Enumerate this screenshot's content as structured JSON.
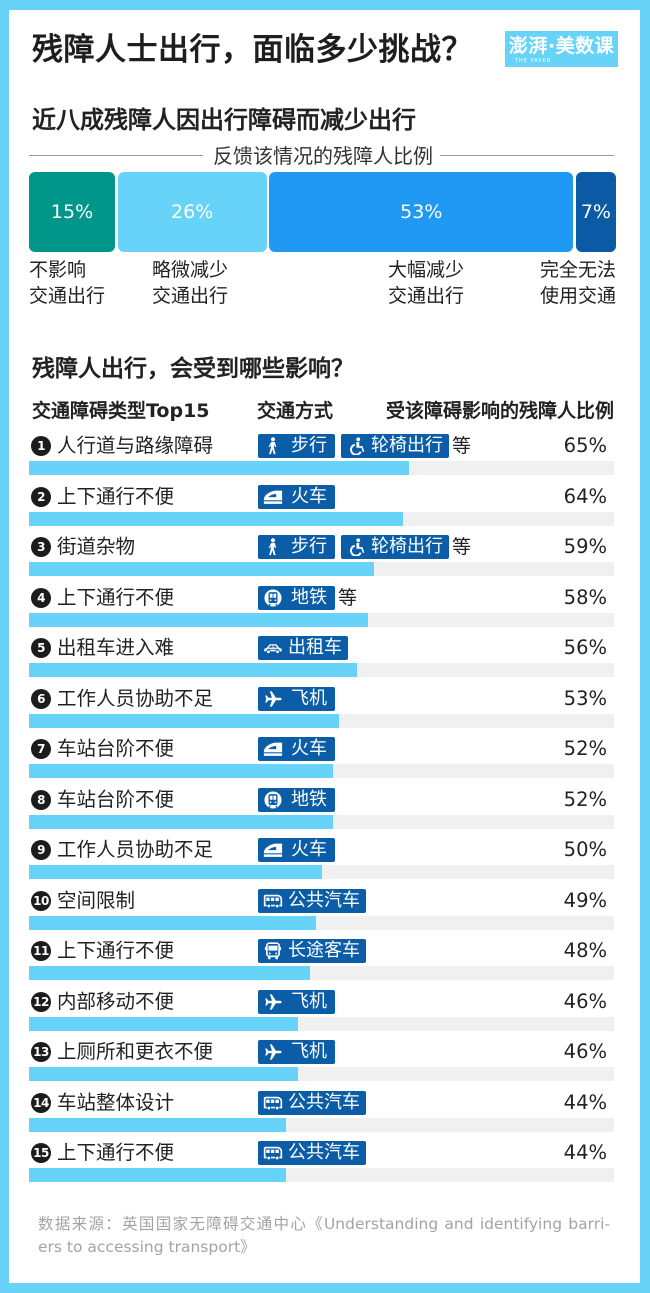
{
  "header": {
    "title": "残障人士出行，面临多少挑战？",
    "logo": {
      "main": "澎湃·美数课",
      "sub": "THE PAPER"
    }
  },
  "section1": {
    "title": "近八成残障人因出行障碍而减少出行",
    "legend_caption": "反馈该情况的残障人比例",
    "segments": [
      {
        "value": 15,
        "display": "15%",
        "label_line1": "不影响",
        "label_line2": "交通出行",
        "color": "#00968A"
      },
      {
        "value": 26,
        "display": "26%",
        "label_line1": "略微减少",
        "label_line2": "交通出行",
        "color": "#67D3F8"
      },
      {
        "value": 53,
        "display": "53%",
        "label_line1": "大幅减少",
        "label_line2": "交通出行",
        "color": "#2099F4"
      },
      {
        "value": 7,
        "display": "7%",
        "label_line1": "完全无法",
        "label_line2": "使用交通",
        "color": "#0B5AA6"
      }
    ]
  },
  "section2": {
    "title": "残障人出行，会受到哪些影响？",
    "columns": [
      "交通障碍类型Top15",
      "交通方式",
      "受该障碍影响的残障人比例"
    ],
    "rows": [
      {
        "rank": "1",
        "barrier": "人行道与路缘障碍",
        "modes": [
          {
            "icon": "walk-icon",
            "label": "步行"
          },
          {
            "icon": "wheelchair-icon",
            "label": "轮椅出行"
          }
        ],
        "suffix": "等",
        "percent": "65%",
        "value": 65
      },
      {
        "rank": "2",
        "barrier": "上下通行不便",
        "modes": [
          {
            "icon": "train-icon",
            "label": "火车"
          }
        ],
        "suffix": "",
        "percent": "64%",
        "value": 64
      },
      {
        "rank": "3",
        "barrier": "街道杂物",
        "modes": [
          {
            "icon": "walk-icon",
            "label": "步行"
          },
          {
            "icon": "wheelchair-icon",
            "label": "轮椅出行"
          }
        ],
        "suffix": "等",
        "percent": "59%",
        "value": 59
      },
      {
        "rank": "4",
        "barrier": "上下通行不便",
        "modes": [
          {
            "icon": "metro-icon",
            "label": "地铁"
          }
        ],
        "suffix": "等",
        "percent": "58%",
        "value": 58
      },
      {
        "rank": "5",
        "barrier": "出租车进入难",
        "modes": [
          {
            "icon": "taxi-icon",
            "label": "出租车"
          }
        ],
        "suffix": "",
        "percent": "56%",
        "value": 56
      },
      {
        "rank": "6",
        "barrier": "工作人员协助不足",
        "modes": [
          {
            "icon": "plane-icon",
            "label": "飞机"
          }
        ],
        "suffix": "",
        "percent": "53%",
        "value": 53
      },
      {
        "rank": "7",
        "barrier": "车站台阶不便",
        "modes": [
          {
            "icon": "train-icon",
            "label": "火车"
          }
        ],
        "suffix": "",
        "percent": "52%",
        "value": 52
      },
      {
        "rank": "8",
        "barrier": "车站台阶不便",
        "modes": [
          {
            "icon": "metro-icon",
            "label": "地铁"
          }
        ],
        "suffix": "",
        "percent": "52%",
        "value": 52
      },
      {
        "rank": "9",
        "barrier": "工作人员协助不足",
        "modes": [
          {
            "icon": "train-icon",
            "label": "火车"
          }
        ],
        "suffix": "",
        "percent": "50%",
        "value": 50
      },
      {
        "rank": "10",
        "barrier": "空间限制",
        "modes": [
          {
            "icon": "bus-icon",
            "label": "公共汽车"
          }
        ],
        "suffix": "",
        "percent": "49%",
        "value": 49
      },
      {
        "rank": "11",
        "barrier": "上下通行不便",
        "modes": [
          {
            "icon": "coach-icon",
            "label": "长途客车"
          }
        ],
        "suffix": "",
        "percent": "48%",
        "value": 48
      },
      {
        "rank": "12",
        "barrier": "内部移动不便",
        "modes": [
          {
            "icon": "plane-icon",
            "label": "飞机"
          }
        ],
        "suffix": "",
        "percent": "46%",
        "value": 46
      },
      {
        "rank": "13",
        "barrier": "上厕所和更衣不便",
        "modes": [
          {
            "icon": "plane-icon",
            "label": "飞机"
          }
        ],
        "suffix": "",
        "percent": "46%",
        "value": 46
      },
      {
        "rank": "14",
        "barrier": "车站整体设计",
        "modes": [
          {
            "icon": "bus-icon",
            "label": "公共汽车"
          }
        ],
        "suffix": "",
        "percent": "44%",
        "value": 44
      },
      {
        "rank": "15",
        "barrier": "上下通行不便",
        "modes": [
          {
            "icon": "bus-icon",
            "label": "公共汽车"
          }
        ],
        "suffix": "",
        "percent": "44%",
        "value": 44
      }
    ]
  },
  "footer": {
    "line1": "数据来源：英国国家无障碍交通中心《Understanding and identifying barri-",
    "line2": "ers to accessing transport》"
  },
  "colors": {
    "frame": "#67D3F8",
    "bar_fill": "#67D3F8",
    "bar_track": "#F0F0F0",
    "tag_bg": "#0B5DA8"
  },
  "chart_data": [
    {
      "type": "bar",
      "orientation": "horizontal-stacked",
      "title": "近八成残障人因出行障碍而减少出行",
      "subtitle": "反馈该情况的残障人比例",
      "categories": [
        "不影响交通出行",
        "略微减少交通出行",
        "大幅减少交通出行",
        "完全无法使用交通"
      ],
      "values": [
        15,
        26,
        53,
        7
      ],
      "unit": "%",
      "colors": [
        "#00968A",
        "#67D3F8",
        "#2099F4",
        "#0B5AA6"
      ],
      "legend": "labels below segments",
      "grid": false
    },
    {
      "type": "bar",
      "orientation": "horizontal",
      "title": "残障人出行，会受到哪些影响？",
      "xlabel": "受该障碍影响的残障人比例",
      "ylabel": "交通障碍类型Top15",
      "categories": [
        "人行道与路缘障碍（步行、轮椅出行等）",
        "上下通行不便（火车）",
        "街道杂物（步行、轮椅出行等）",
        "上下通行不便（地铁等）",
        "出租车进入难（出租车）",
        "工作人员协助不足（飞机）",
        "车站台阶不便（火车）",
        "车站台阶不便（地铁）",
        "工作人员协助不足（火车）",
        "空间限制（公共汽车）",
        "上下通行不便（长途客车）",
        "内部移动不便（飞机）",
        "上厕所和更衣不便（飞机）",
        "车站整体设计（公共汽车）",
        "上下通行不便（公共汽车）"
      ],
      "values": [
        65,
        64,
        59,
        58,
        56,
        53,
        52,
        52,
        50,
        49,
        48,
        46,
        46,
        44,
        44
      ],
      "unit": "%",
      "xlim": [
        0,
        100
      ],
      "grid": false
    }
  ]
}
